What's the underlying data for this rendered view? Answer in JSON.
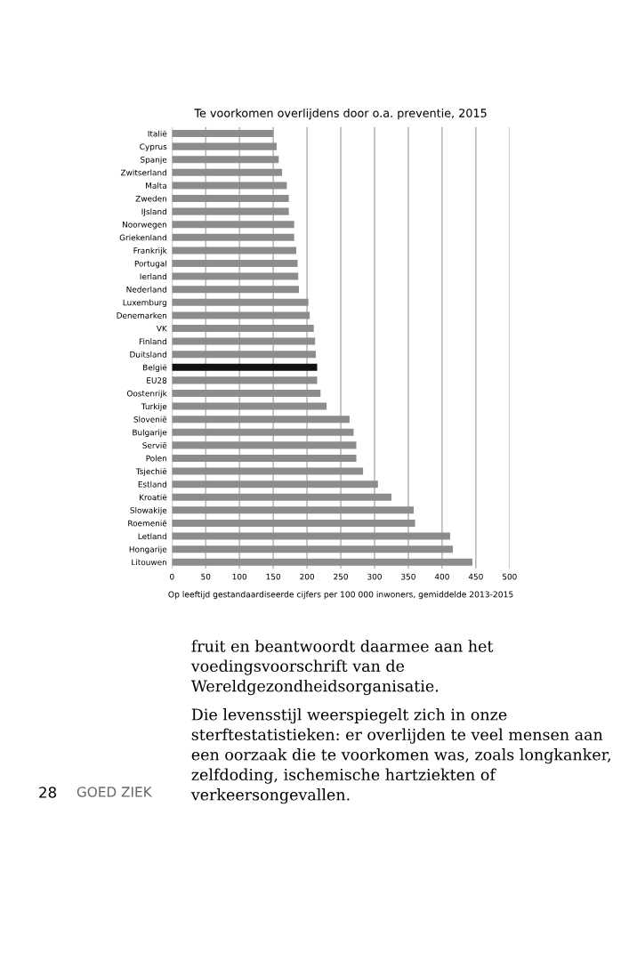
{
  "chart_data": {
    "type": "bar",
    "orientation": "horizontal",
    "title": "Te voorkomen overlijdens door o.a. preventie, 2015",
    "categories": [
      "Italië",
      "Cyprus",
      "Spanje",
      "Zwitserland",
      "Malta",
      "Zweden",
      "IJsland",
      "Noorwegen",
      "Griekenland",
      "Frankrijk",
      "Portugal",
      "Ierland",
      "Nederland",
      "Luxemburg",
      "Denemarken",
      "VK",
      "Finland",
      "Duitsland",
      "België",
      "EU28",
      "Oostenrijk",
      "Turkije",
      "Slovenië",
      "Bulgarije",
      "Servië",
      "Polen",
      "Tsjechië",
      "Estland",
      "Kroatië",
      "Slowakije",
      "Roemenië",
      "Letland",
      "Hongarije",
      "Litouwen"
    ],
    "values": [
      150,
      155,
      158,
      163,
      170,
      173,
      173,
      181,
      181,
      184,
      186,
      187,
      188,
      202,
      204,
      210,
      212,
      213,
      215,
      215,
      220,
      229,
      263,
      269,
      273,
      273,
      283,
      305,
      325,
      358,
      360,
      412,
      416,
      445
    ],
    "colors": [
      "#8c8c8c",
      "#8c8c8c",
      "#8c8c8c",
      "#8c8c8c",
      "#8c8c8c",
      "#8c8c8c",
      "#8c8c8c",
      "#8c8c8c",
      "#8c8c8c",
      "#8c8c8c",
      "#8c8c8c",
      "#8c8c8c",
      "#8c8c8c",
      "#8c8c8c",
      "#8c8c8c",
      "#8c8c8c",
      "#8c8c8c",
      "#8c8c8c",
      "#111111",
      "#8c8c8c",
      "#8c8c8c",
      "#8c8c8c",
      "#8c8c8c",
      "#8c8c8c",
      "#8c8c8c",
      "#8c8c8c",
      "#8c8c8c",
      "#8c8c8c",
      "#8c8c8c",
      "#8c8c8c",
      "#8c8c8c",
      "#8c8c8c",
      "#8c8c8c",
      "#8c8c8c"
    ],
    "xlim": [
      0,
      500
    ],
    "xticks": [
      0,
      50,
      100,
      150,
      200,
      250,
      300,
      350,
      400,
      450,
      500
    ],
    "grid": "x",
    "annotations": [
      "Op leeftijd gestandaardiseerde cijfers per 100 000 inwoners, gemiddelde 2013-2015",
      "fruit en beantwoordt daarmee aan het voedingsvoorschrift van de Wereldgezondheidsorganisatie.",
      "Die levensstijl weerspiegelt zich in onze sterftestatistieken: er overlijden te veel mensen aan een oorzaak die te voorkomen was, zoals longkanker, zelfdoding, ischemische hartziekten of verkeersongevallen.",
      "28",
      "GOED ZIEK"
    ]
  }
}
